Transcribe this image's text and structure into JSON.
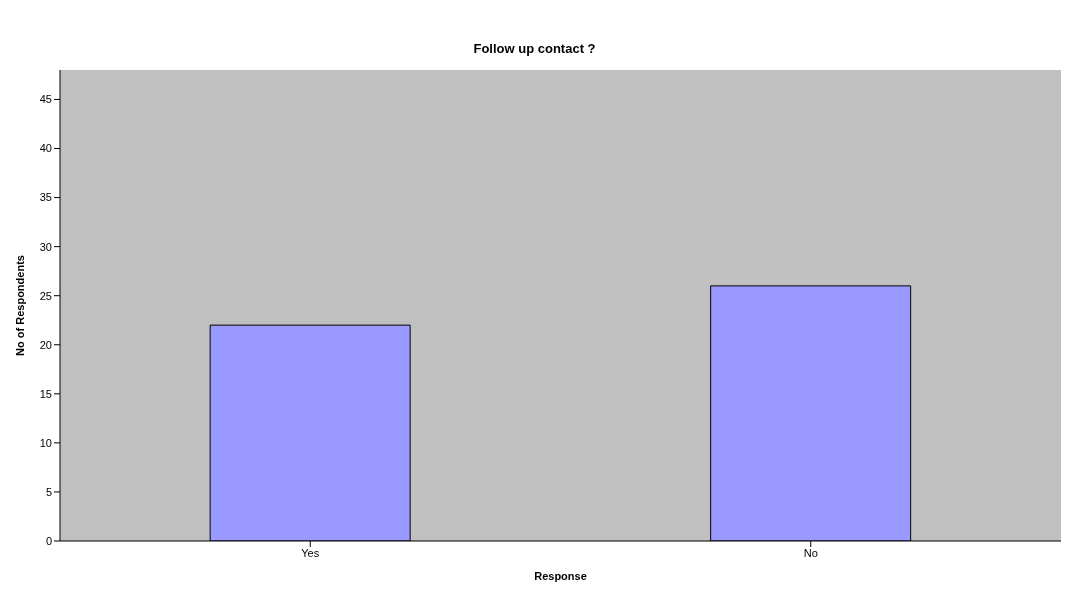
{
  "chart_data": {
    "type": "bar",
    "title": "Follow up contact ?",
    "xlabel": "Response",
    "ylabel": "No of Respondents",
    "categories": [
      "Yes",
      "No"
    ],
    "values": [
      22,
      26
    ],
    "color": "#9999ff",
    "ylim": [
      0,
      48
    ],
    "yticks": [
      0,
      5,
      10,
      15,
      20,
      25,
      30,
      35,
      40,
      45
    ],
    "grid": false,
    "legend": false
  }
}
